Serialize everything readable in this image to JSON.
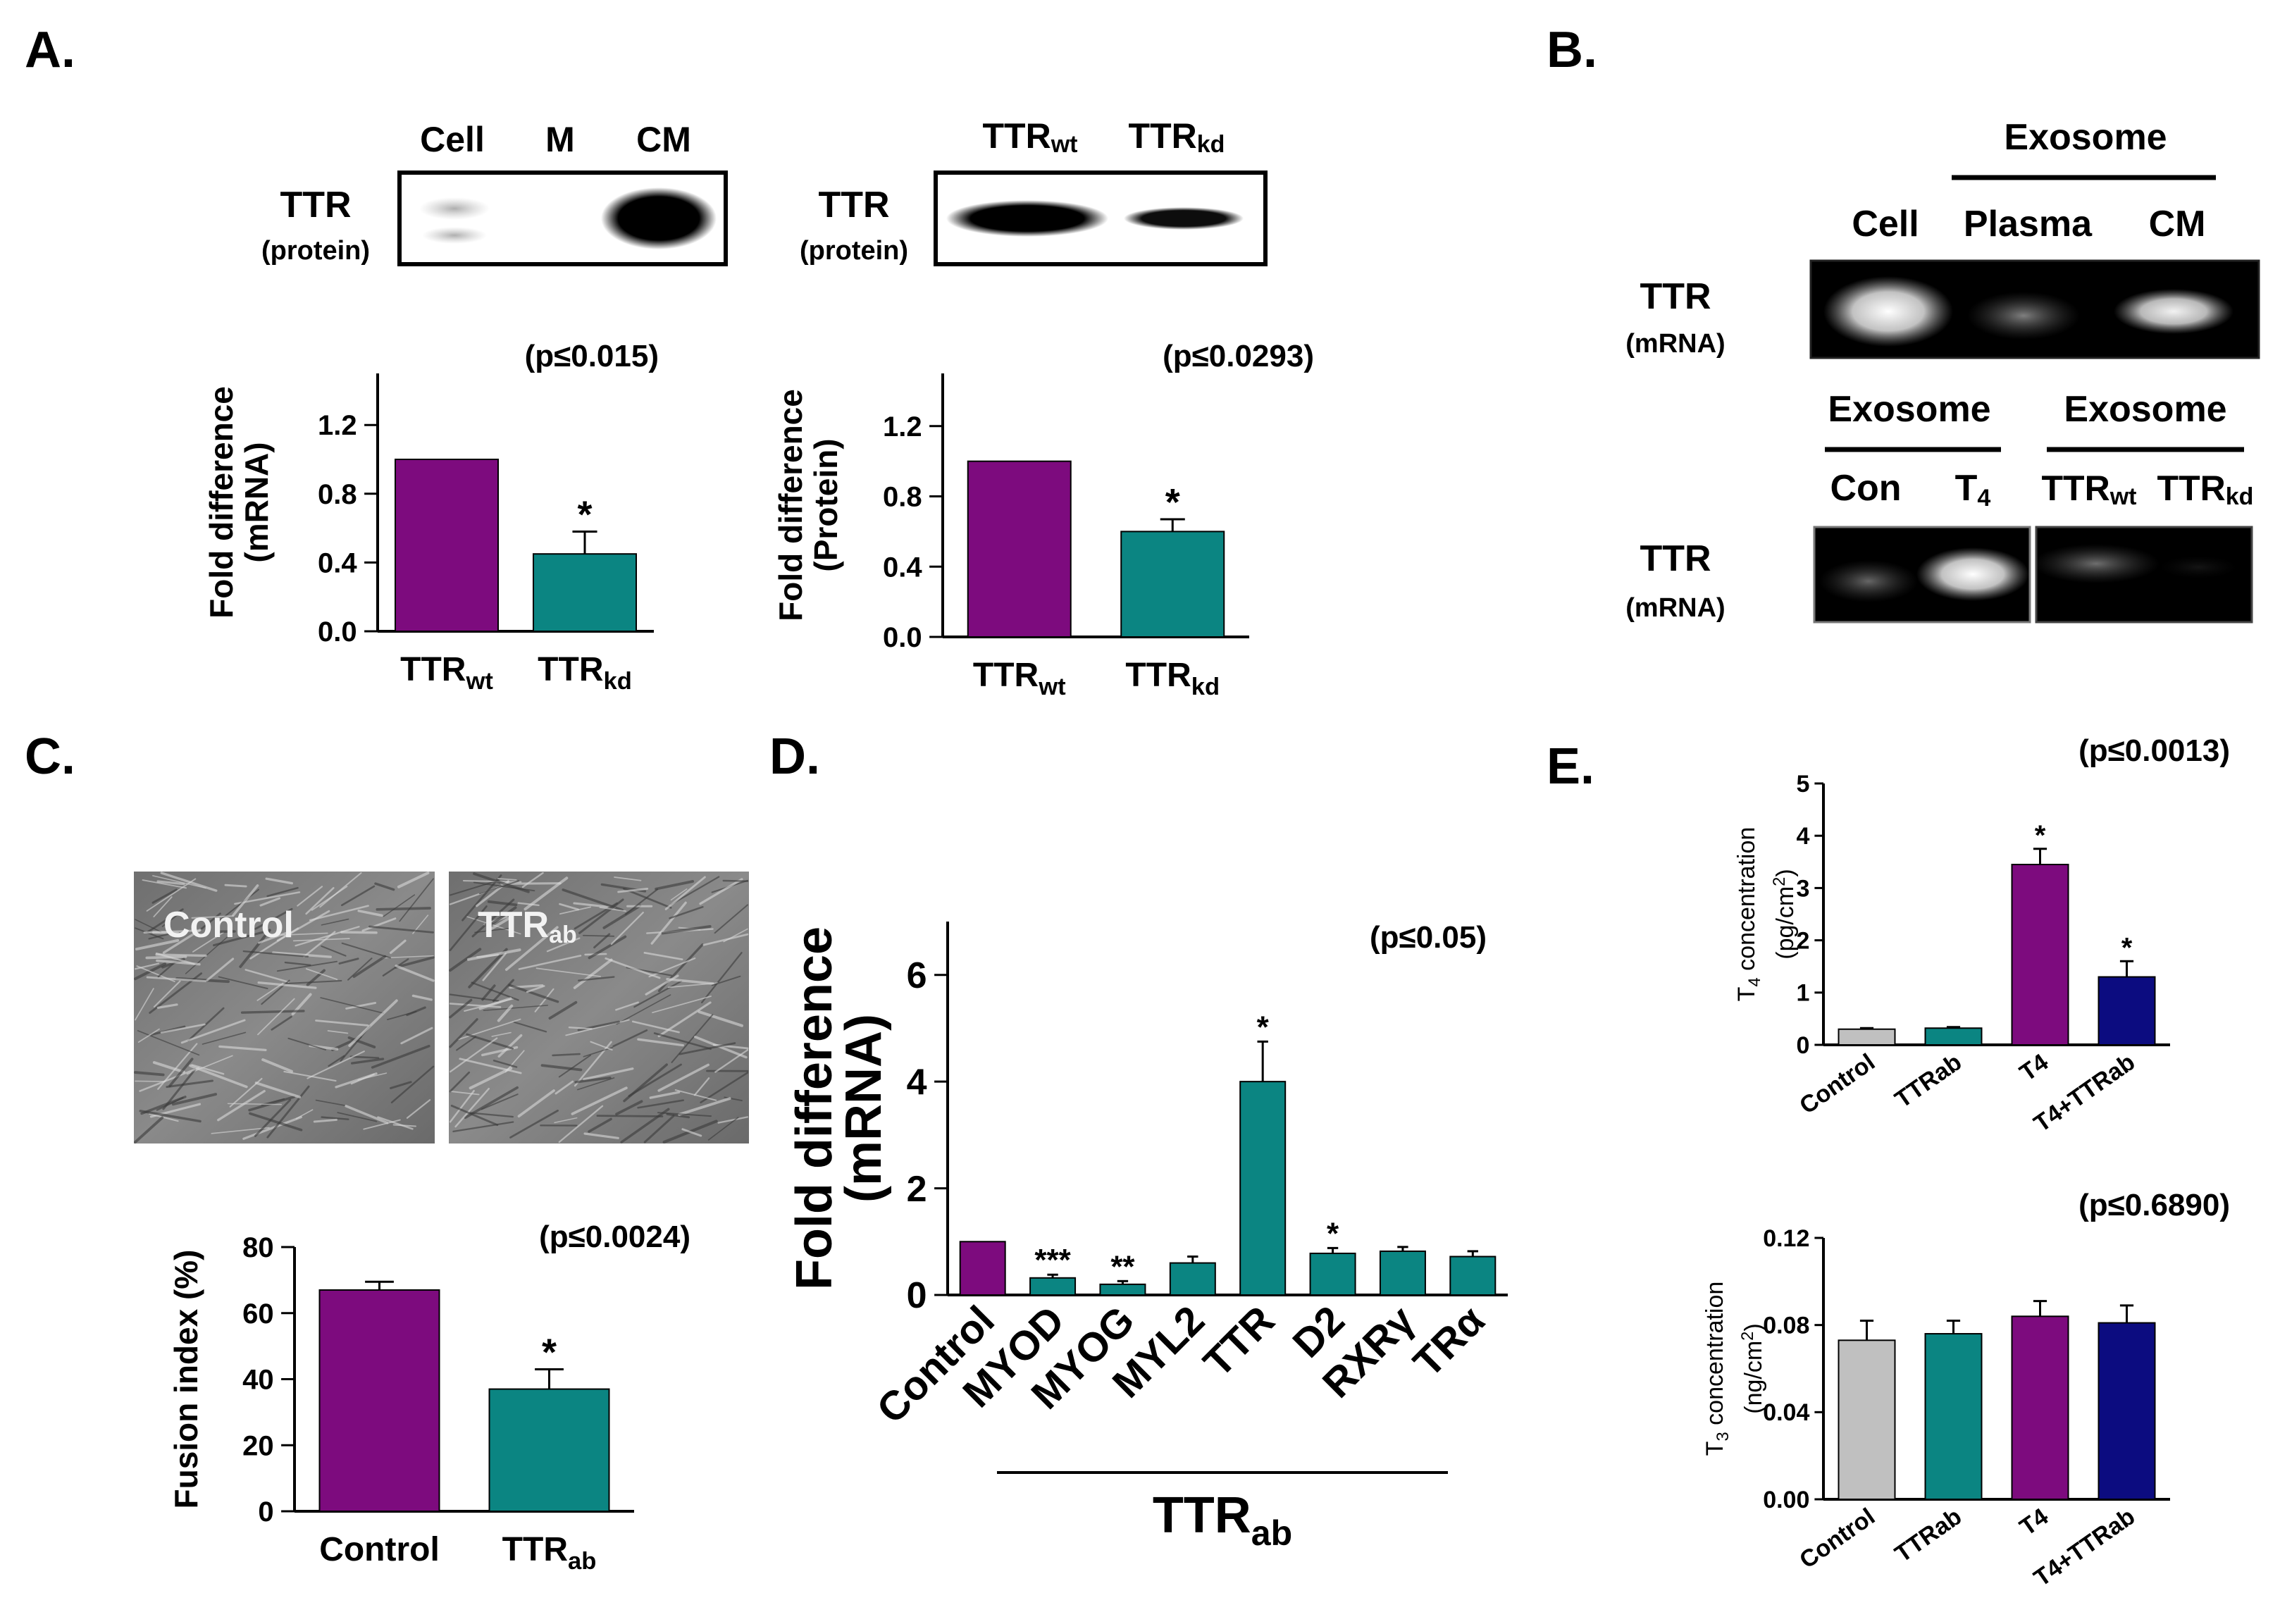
{
  "panels": {
    "A": "A.",
    "B": "B.",
    "C": "C.",
    "D": "D.",
    "E": "E."
  },
  "blotA1": {
    "lanes": [
      "Cell",
      "M",
      "CM"
    ],
    "label": "TTR",
    "sublabel": "(protein)"
  },
  "blotA2": {
    "lanes": [
      {
        "base": "TTR",
        "sub": "wt"
      },
      {
        "base": "TTR",
        "sub": "kd"
      }
    ],
    "label": "TTR",
    "sublabel": "(protein)"
  },
  "blotB1": {
    "header": "Exosome",
    "lanes": [
      "Cell",
      "Plasma",
      "CM"
    ],
    "label": "TTR",
    "sublabel": "(mRNA)"
  },
  "blotB2": {
    "headers": [
      "Exosome",
      "Exosome"
    ],
    "lanes": [
      {
        "base": "Con",
        "sub": ""
      },
      {
        "base": "T",
        "sub": "4"
      },
      {
        "base": "TTR",
        "sub": "wt"
      },
      {
        "base": "TTR",
        "sub": "kd"
      }
    ],
    "label": "TTR",
    "sublabel": "(mRNA)"
  },
  "microscopy": {
    "left": {
      "base": "Control",
      "sub": ""
    },
    "right": {
      "base": "TTR",
      "sub": "ab"
    }
  },
  "colors": {
    "purple": "#7d0b7e",
    "teal": "#0b8582",
    "gray": "#c0c0c0",
    "navy": "#0c0c80"
  },
  "chart_data": [
    {
      "id": "A1",
      "type": "bar",
      "pvalue": "(p≤0.015)",
      "ylabel": [
        "Fold difference",
        "(mRNA)"
      ],
      "ylim": [
        0,
        1.5
      ],
      "ticks": [
        0.0,
        0.4,
        0.8,
        1.2
      ],
      "tick_labels": [
        "0.0",
        "0.4",
        "0.8",
        "1.2"
      ],
      "categories": [
        {
          "base": "TTR",
          "sub": "wt"
        },
        {
          "base": "TTR",
          "sub": "kd"
        }
      ],
      "values": [
        1.0,
        0.45
      ],
      "errors": [
        0,
        0.13
      ],
      "sig": [
        "",
        "*"
      ],
      "colors": [
        "#7d0b7e",
        "#0b8582"
      ]
    },
    {
      "id": "A2",
      "type": "bar",
      "pvalue": "(p≤0.0293)",
      "ylabel": [
        "Fold difference",
        "(Protein)"
      ],
      "ylim": [
        0,
        1.5
      ],
      "ticks": [
        0.0,
        0.4,
        0.8,
        1.2
      ],
      "tick_labels": [
        "0.0",
        "0.4",
        "0.8",
        "1.2"
      ],
      "categories": [
        {
          "base": "TTR",
          "sub": "wt"
        },
        {
          "base": "TTR",
          "sub": "kd"
        }
      ],
      "values": [
        1.0,
        0.6
      ],
      "errors": [
        0,
        0.07
      ],
      "sig": [
        "",
        "*"
      ],
      "colors": [
        "#7d0b7e",
        "#0b8582"
      ]
    },
    {
      "id": "C",
      "type": "bar",
      "pvalue": "(p≤0.0024)",
      "ylabel": [
        "Fusion index (%)"
      ],
      "ylim": [
        0,
        80
      ],
      "ticks": [
        0,
        20,
        40,
        60,
        80
      ],
      "tick_labels": [
        "0",
        "20",
        "40",
        "60",
        "80"
      ],
      "categories": [
        {
          "base": "Control",
          "sub": ""
        },
        {
          "base": "TTR",
          "sub": "ab"
        }
      ],
      "values": [
        67,
        37
      ],
      "errors": [
        2.5,
        6
      ],
      "sig": [
        "",
        "*"
      ],
      "colors": [
        "#7d0b7e",
        "#0b8582"
      ]
    },
    {
      "id": "D",
      "type": "bar",
      "pvalue": "(p≤0.05)",
      "ylabel": [
        "Fold difference",
        "(mRNA)"
      ],
      "ylim": [
        0,
        7
      ],
      "ticks": [
        0,
        2,
        4,
        6
      ],
      "tick_labels": [
        "0",
        "2",
        "4",
        "6"
      ],
      "categories": [
        "Control",
        "MYOD",
        "MYOG",
        "MYL2",
        "TTR",
        "D2",
        "RXRγ",
        "TRα"
      ],
      "values": [
        1.0,
        0.32,
        0.2,
        0.6,
        4.0,
        0.78,
        0.82,
        0.72
      ],
      "errors": [
        0,
        0.06,
        0.06,
        0.12,
        0.75,
        0.1,
        0.08,
        0.1
      ],
      "sig": [
        "",
        "***",
        "**",
        "",
        "*",
        "*",
        "",
        ""
      ],
      "colors": [
        "#7d0b7e",
        "#0b8582",
        "#0b8582",
        "#0b8582",
        "#0b8582",
        "#0b8582",
        "#0b8582",
        "#0b8582"
      ],
      "group_label": {
        "base": "TTR",
        "sub": "ab"
      }
    },
    {
      "id": "E1",
      "type": "bar",
      "pvalue": "(p≤0.0013)",
      "ylim": [
        0,
        5
      ],
      "ylabel": {
        "base": "T",
        "sub": "4",
        "rest": " concentration",
        "unit": "(pg/cm",
        "sup": "2",
        "close": ")"
      },
      "ticks": [
        0,
        1,
        2,
        3,
        4,
        5
      ],
      "tick_labels": [
        "0",
        "1",
        "2",
        "3",
        "4",
        "5"
      ],
      "categories": [
        "Control",
        "TTRab",
        "T4",
        "T4+TTRab"
      ],
      "values": [
        0.3,
        0.32,
        3.45,
        1.3
      ],
      "errors": [
        0.02,
        0.02,
        0.3,
        0.3
      ],
      "sig": [
        "",
        "",
        "*",
        "*"
      ],
      "colors": [
        "#c0c0c0",
        "#0b8582",
        "#7d0b7e",
        "#0c0c80"
      ]
    },
    {
      "id": "E2",
      "type": "bar",
      "pvalue": "(p≤0.6890)",
      "ylim": [
        0,
        0.12
      ],
      "ylabel": {
        "base": "T",
        "sub": "3",
        "rest": " concentration",
        "unit": "(ng/cm",
        "sup": "2",
        "close": ")"
      },
      "ticks": [
        0,
        0.04,
        0.08,
        0.12
      ],
      "tick_labels": [
        "0.00",
        "0.04",
        "0.08",
        "0.12"
      ],
      "categories": [
        "Control",
        "TTRab",
        "T4",
        "T4+TTRab"
      ],
      "values": [
        0.073,
        0.076,
        0.084,
        0.081
      ],
      "errors": [
        0.009,
        0.006,
        0.007,
        0.008
      ],
      "sig": [
        "",
        "",
        "",
        ""
      ],
      "colors": [
        "#c0c0c0",
        "#0b8582",
        "#7d0b7e",
        "#0c0c80"
      ]
    }
  ]
}
